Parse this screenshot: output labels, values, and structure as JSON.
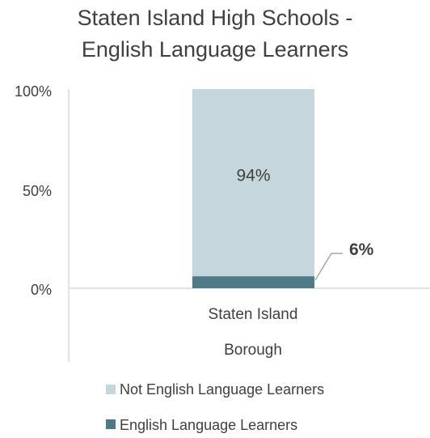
{
  "chart_data": {
    "type": "bar",
    "stacked": true,
    "percent": true,
    "title": [
      "Staten Island High Schools -",
      "English Language Learners"
    ],
    "categories": [
      [
        "Staten Island",
        "Borough"
      ]
    ],
    "series": [
      {
        "name": "English Language Learners",
        "values": [
          6
        ],
        "color": "#4f7a87",
        "label": "6%"
      },
      {
        "name": "Not English Language Learners",
        "values": [
          94
        ],
        "color": "#c5d6dd",
        "label": "94%"
      }
    ],
    "yticks": [
      "0%",
      "50%",
      "100%"
    ],
    "ylim": [
      0,
      100
    ],
    "legend_position": "bottom",
    "legend_order": [
      "Not English Language Learners",
      "English Language Learners"
    ],
    "grid": false
  }
}
